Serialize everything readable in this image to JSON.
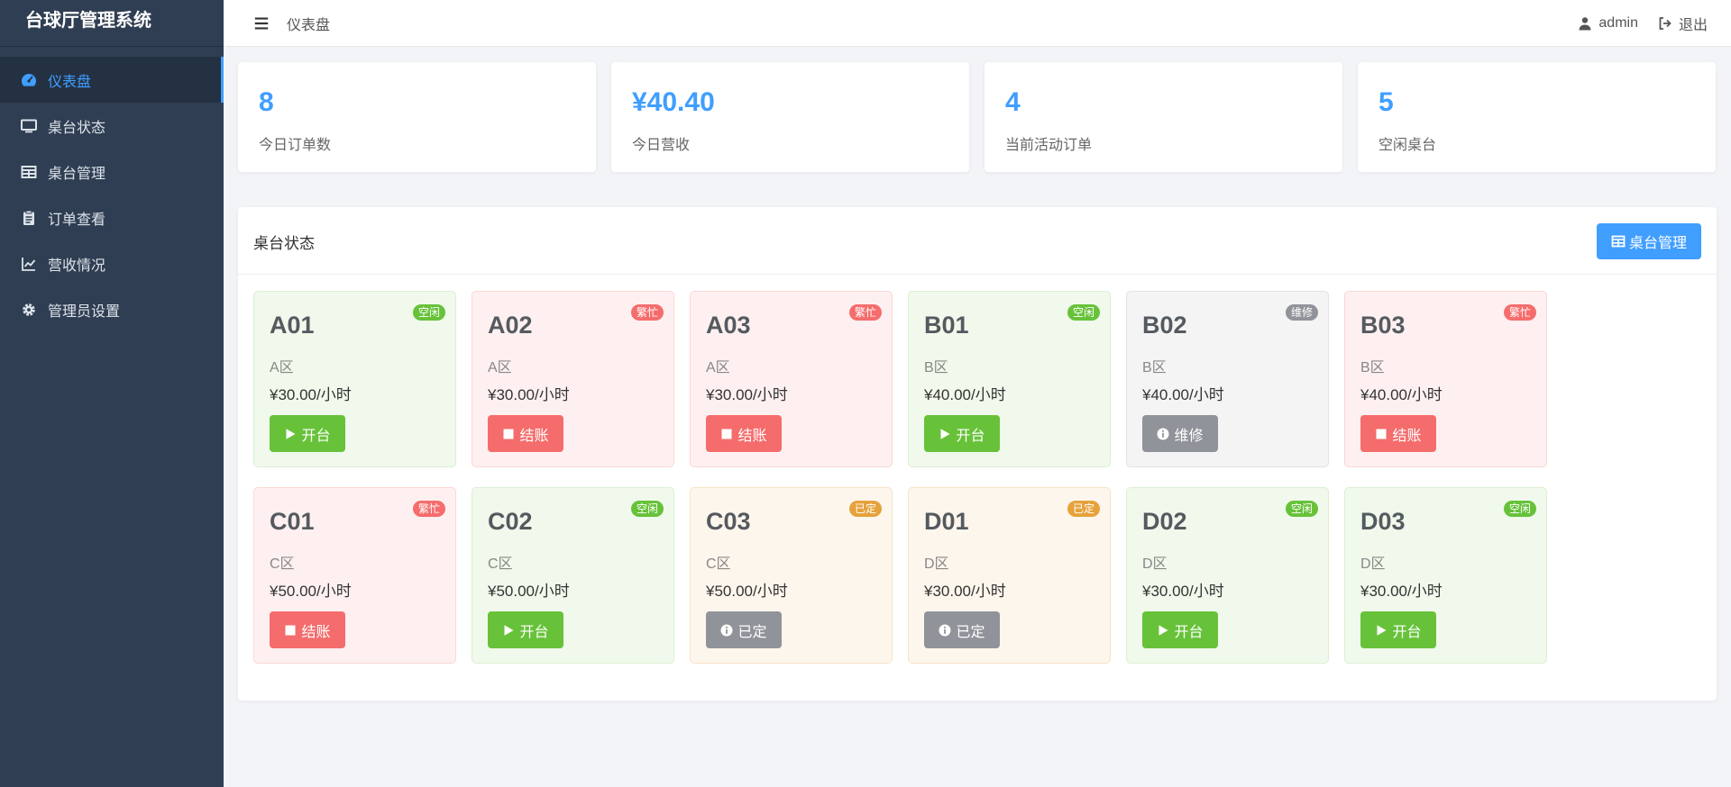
{
  "sidebar": {
    "title": "台球厅管理系统",
    "items": [
      {
        "label": "仪表盘",
        "icon": "dashboard-icon"
      },
      {
        "label": "桌台状态",
        "icon": "monitor-icon"
      },
      {
        "label": "桌台管理",
        "icon": "table-grid-icon"
      },
      {
        "label": "订单查看",
        "icon": "clipboard-icon"
      },
      {
        "label": "营收情况",
        "icon": "line-chart-icon"
      },
      {
        "label": "管理员设置",
        "icon": "gear-icon"
      }
    ]
  },
  "header": {
    "breadcrumb": "仪表盘",
    "user": "admin",
    "logout": "退出"
  },
  "stats": [
    {
      "value": "8",
      "label": "今日订单数"
    },
    {
      "value": "¥40.40",
      "label": "今日营收"
    },
    {
      "value": "4",
      "label": "当前活动订单"
    },
    {
      "value": "5",
      "label": "空闲桌台"
    }
  ],
  "panel": {
    "title": "桌台状态",
    "manage_button": "桌台管理"
  },
  "tables": [
    {
      "name": "A01",
      "zone": "A区",
      "price": "¥30.00/小时",
      "status": "空闲",
      "action": "开台"
    },
    {
      "name": "A02",
      "zone": "A区",
      "price": "¥30.00/小时",
      "status": "繁忙",
      "action": "结账"
    },
    {
      "name": "A03",
      "zone": "A区",
      "price": "¥30.00/小时",
      "status": "繁忙",
      "action": "结账"
    },
    {
      "name": "B01",
      "zone": "B区",
      "price": "¥40.00/小时",
      "status": "空闲",
      "action": "开台"
    },
    {
      "name": "B02",
      "zone": "B区",
      "price": "¥40.00/小时",
      "status": "维修",
      "action": "维修"
    },
    {
      "name": "B03",
      "zone": "B区",
      "price": "¥40.00/小时",
      "status": "繁忙",
      "action": "结账"
    },
    {
      "name": "C01",
      "zone": "C区",
      "price": "¥50.00/小时",
      "status": "繁忙",
      "action": "结账"
    },
    {
      "name": "C02",
      "zone": "C区",
      "price": "¥50.00/小时",
      "status": "空闲",
      "action": "开台"
    },
    {
      "name": "C03",
      "zone": "C区",
      "price": "¥50.00/小时",
      "status": "已定",
      "action": "已定"
    },
    {
      "name": "D01",
      "zone": "D区",
      "price": "¥30.00/小时",
      "status": "已定",
      "action": "已定"
    },
    {
      "name": "D02",
      "zone": "D区",
      "price": "¥30.00/小时",
      "status": "空闲",
      "action": "开台"
    },
    {
      "name": "D03",
      "zone": "D区",
      "price": "¥30.00/小时",
      "status": "空闲",
      "action": "开台"
    }
  ],
  "colors": {
    "primary": "#409eff",
    "free": "#67c23a",
    "busy": "#f56c6c",
    "maintenance": "#909399",
    "booked": "#e6a23c",
    "sidebar": "#2f3e52"
  }
}
